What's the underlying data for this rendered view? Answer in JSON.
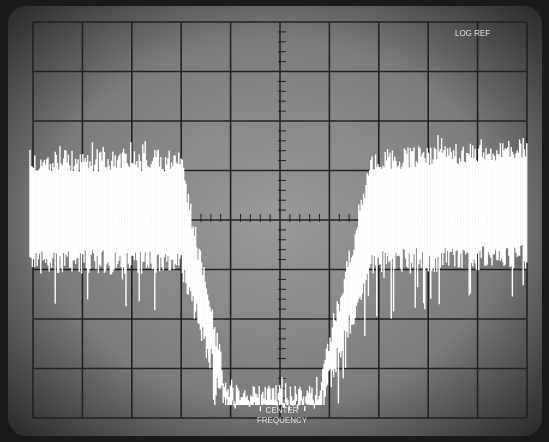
{
  "screen": {
    "labels": {
      "log_ref": "LOG REF",
      "center": "CENTER",
      "frequency": "FREQUENCY"
    }
  }
}
